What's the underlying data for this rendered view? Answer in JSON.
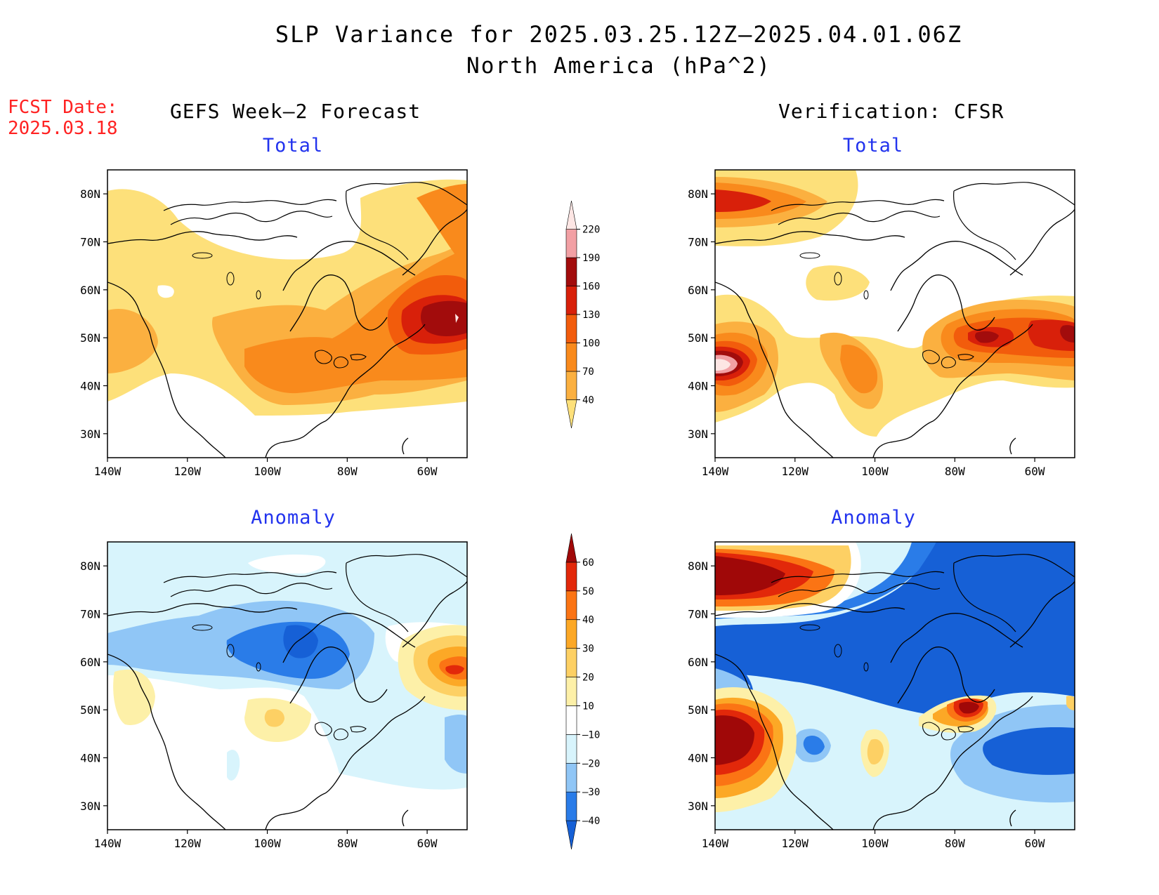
{
  "title": "SLP Variance for 2025.03.25.12Z–2025.04.01.06Z",
  "subtitle": "North America (hPa^2)",
  "fcst_label": "FCST Date:",
  "fcst_date": "2025.03.18",
  "columns": {
    "left": "GEFS Week–2 Forecast",
    "right": "Verification: CFSR"
  },
  "panels": {
    "total_title": "Total",
    "anomaly_title": "Anomaly"
  },
  "axes": {
    "lat_ticks": [
      "80N",
      "70N",
      "60N",
      "50N",
      "40N",
      "30N"
    ],
    "lon_ticks": [
      "140W",
      "120W",
      "100W",
      "80W",
      "60W"
    ]
  },
  "colorbars": {
    "total": {
      "ticks": [
        "220",
        "190",
        "160",
        "130",
        "100",
        "70",
        "40"
      ],
      "colors": [
        "#fde07a",
        "#fbb040",
        "#f98a1c",
        "#f25c0c",
        "#d8200a",
        "#a20c0c",
        "#f2a0a4",
        "#fde6e4"
      ]
    },
    "anomaly": {
      "ticks": [
        "60",
        "50",
        "40",
        "30",
        "20",
        "10",
        "–10",
        "–20",
        "–30",
        "–40"
      ],
      "colors": [
        "#1660d6",
        "#2a7ce8",
        "#90c6f6",
        "#d8f4fc",
        "#ffffff",
        "#fdf0a8",
        "#fdd064",
        "#fca826",
        "#fb7414",
        "#e2280a",
        "#a00808"
      ]
    }
  },
  "colors": {
    "fcst_text": "#ff2222",
    "panel_title": "#2233ee"
  }
}
